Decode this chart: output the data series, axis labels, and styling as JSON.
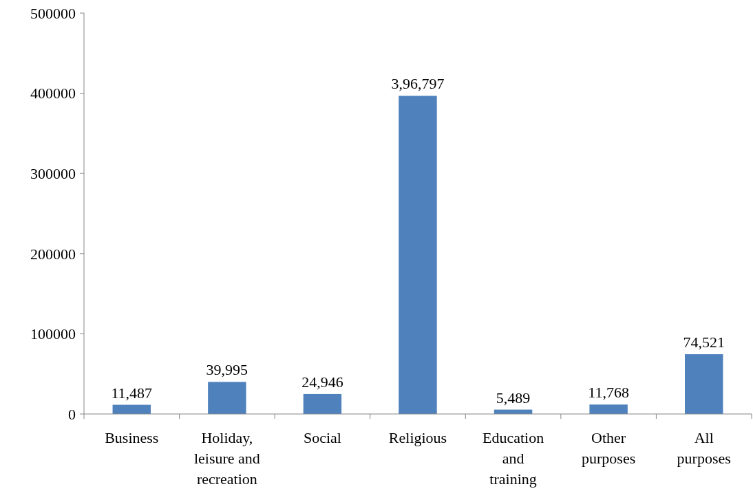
{
  "chart_data": {
    "type": "bar",
    "categories": [
      "Business",
      "Holiday, leisure and recreation",
      "Social",
      "Religious",
      "Education and training",
      "Other purposes",
      "All purposes"
    ],
    "values": [
      11487,
      39995,
      24946,
      396797,
      5489,
      11768,
      74521
    ],
    "value_labels": [
      "11,487",
      "39,995",
      "24,946",
      "3,96,797",
      "5,489",
      "11,768",
      "74,521"
    ],
    "color": "#4f81bd",
    "ylim": [
      0,
      500000
    ],
    "yticks": [
      0,
      100000,
      200000,
      300000,
      400000,
      500000
    ]
  }
}
